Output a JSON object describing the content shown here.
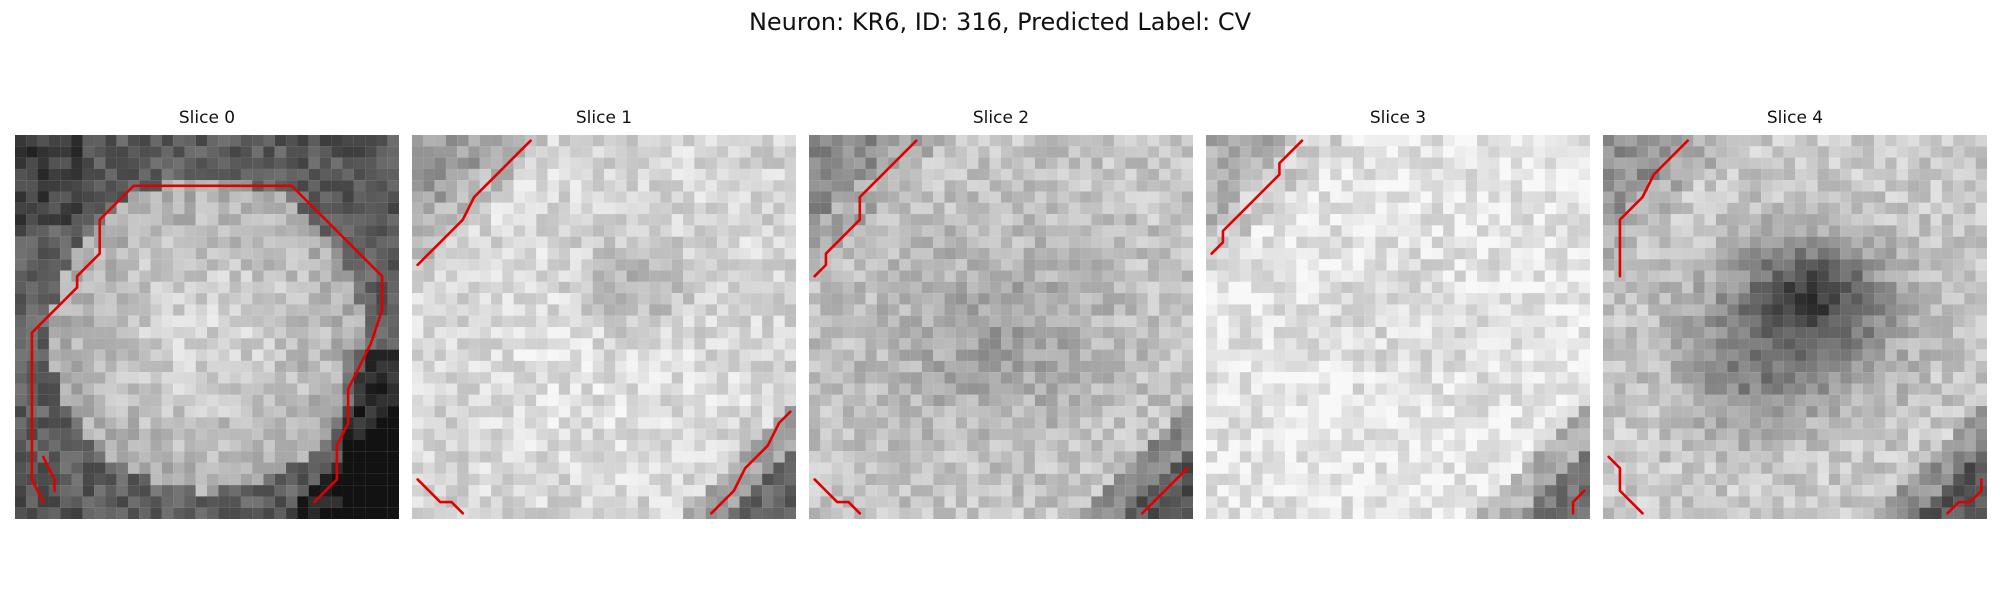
{
  "figure": {
    "title": "Neuron: KR6, ID: 316, Predicted Label: CV",
    "outline_color": "#e00000",
    "panels": [
      {
        "title": "Slice 0",
        "base": 150,
        "body": 212,
        "inner": 205,
        "dark_regions": [
          "bottom-right"
        ],
        "contours": [
          [
            [
              2,
              32
            ],
            [
              1,
              30
            ],
            [
              1,
              28
            ],
            [
              1,
              17
            ],
            [
              2,
              16
            ],
            [
              3,
              15
            ],
            [
              4,
              14
            ],
            [
              5,
              13
            ],
            [
              5,
              12
            ],
            [
              6,
              11
            ],
            [
              7,
              10
            ],
            [
              7,
              9
            ],
            [
              7,
              7
            ],
            [
              8,
              6
            ],
            [
              9,
              5
            ],
            [
              10,
              4
            ],
            [
              11,
              4
            ],
            [
              12,
              4
            ],
            [
              14,
              4
            ],
            [
              16,
              4
            ],
            [
              18,
              4
            ],
            [
              20,
              4
            ],
            [
              22,
              4
            ],
            [
              24,
              4
            ],
            [
              25,
              5
            ],
            [
              26,
              6
            ],
            [
              27,
              7
            ],
            [
              28,
              8
            ],
            [
              29,
              9
            ],
            [
              30,
              10
            ],
            [
              31,
              11
            ],
            [
              32,
              12
            ],
            [
              32,
              15
            ],
            [
              31,
              18
            ],
            [
              30,
              20
            ],
            [
              29,
              22
            ],
            [
              29,
              25
            ],
            [
              28,
              27
            ],
            [
              28,
              30
            ],
            [
              27,
              31
            ],
            [
              26,
              32
            ]
          ],
          [
            [
              2,
              28
            ],
            [
              3,
              30
            ],
            [
              3,
              31
            ]
          ]
        ]
      },
      {
        "title": "Slice 1",
        "base": 210,
        "body": 228,
        "inner": 160,
        "dark_regions": [
          "top-left",
          "bottom-right"
        ],
        "contours": [
          [
            [
              0,
              11
            ],
            [
              1,
              10
            ],
            [
              2,
              9
            ],
            [
              3,
              8
            ],
            [
              4,
              7
            ],
            [
              5,
              5
            ],
            [
              6,
              4
            ],
            [
              7,
              3
            ],
            [
              8,
              2
            ],
            [
              9,
              1
            ],
            [
              10,
              0
            ]
          ],
          [
            [
              0,
              30
            ],
            [
              1,
              31
            ],
            [
              2,
              32
            ],
            [
              3,
              32
            ],
            [
              4,
              33
            ]
          ],
          [
            [
              26,
              33
            ],
            [
              27,
              32
            ],
            [
              28,
              31
            ],
            [
              29,
              29
            ],
            [
              30,
              28
            ],
            [
              31,
              27
            ],
            [
              32,
              25
            ],
            [
              33,
              24
            ]
          ]
        ]
      },
      {
        "title": "Slice 2",
        "base": 195,
        "body": 205,
        "inner": 170,
        "dark_regions": [
          "top-left",
          "bottom-right"
        ],
        "contours": [
          [
            [
              0,
              12
            ],
            [
              1,
              11
            ],
            [
              1,
              10
            ],
            [
              2,
              9
            ],
            [
              3,
              8
            ],
            [
              4,
              7
            ],
            [
              4,
              5
            ],
            [
              5,
              4
            ],
            [
              6,
              3
            ],
            [
              7,
              2
            ],
            [
              8,
              1
            ],
            [
              9,
              0
            ]
          ],
          [
            [
              0,
              30
            ],
            [
              1,
              31
            ],
            [
              2,
              32
            ],
            [
              3,
              32
            ],
            [
              4,
              33
            ]
          ],
          [
            [
              29,
              33
            ],
            [
              30,
              32
            ],
            [
              31,
              31
            ],
            [
              32,
              30
            ],
            [
              33,
              29
            ]
          ]
        ]
      },
      {
        "title": "Slice 3",
        "base": 228,
        "body": 235,
        "inner": 212,
        "dark_regions": [
          "top-left",
          "bottom-right"
        ],
        "contours": [
          [
            [
              0,
              10
            ],
            [
              1,
              9
            ],
            [
              1,
              8
            ],
            [
              2,
              7
            ],
            [
              3,
              6
            ],
            [
              4,
              5
            ],
            [
              5,
              4
            ],
            [
              6,
              3
            ],
            [
              6,
              2
            ],
            [
              7,
              1
            ],
            [
              8,
              0
            ]
          ],
          [
            [
              32,
              33
            ],
            [
              32,
              32
            ],
            [
              33,
              31
            ]
          ]
        ]
      },
      {
        "title": "Slice 4",
        "base": 200,
        "body": 208,
        "inner": 120,
        "dark_regions": [
          "top-left",
          "bottom-right"
        ],
        "contours": [
          [
            [
              1,
              12
            ],
            [
              1,
              11
            ],
            [
              1,
              8
            ],
            [
              1,
              7
            ],
            [
              2,
              6
            ],
            [
              3,
              5
            ],
            [
              4,
              3
            ],
            [
              5,
              2
            ],
            [
              6,
              1
            ],
            [
              7,
              0
            ]
          ],
          [
            [
              0,
              28
            ],
            [
              1,
              29
            ],
            [
              1,
              31
            ],
            [
              2,
              32
            ],
            [
              3,
              33
            ]
          ],
          [
            [
              30,
              33
            ],
            [
              31,
              32
            ],
            [
              32,
              32
            ],
            [
              33,
              31
            ],
            [
              33,
              30
            ]
          ]
        ]
      }
    ]
  }
}
